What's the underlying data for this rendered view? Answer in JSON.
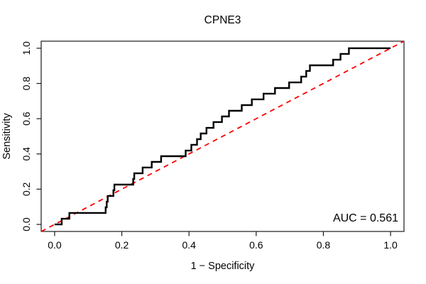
{
  "chart_data": {
    "type": "line",
    "subtype": "roc-step-curve",
    "title": "CPNE3",
    "xlabel": "1 − Specificity",
    "ylabel": "Sensitivity",
    "annotation": "AUC = 0.561",
    "auc": 0.561,
    "xlim": [
      -0.04,
      1.04
    ],
    "ylim": [
      -0.04,
      1.04
    ],
    "grid": false,
    "legend": "none",
    "x_ticks": [
      0.0,
      0.2,
      0.4,
      0.6,
      0.8,
      1.0
    ],
    "y_ticks": [
      0.0,
      0.2,
      0.4,
      0.6,
      0.8,
      1.0
    ],
    "x_tick_labels": [
      "0.0",
      "0.2",
      "0.4",
      "0.6",
      "0.8",
      "1.0"
    ],
    "y_tick_labels": [
      "0.0",
      "0.2",
      "0.4",
      "0.6",
      "0.8",
      "1.0"
    ],
    "series": [
      {
        "name": "ROC curve",
        "style": "step",
        "color": "#000000",
        "line_width": 2.4,
        "points": [
          [
            0.0,
            0.0
          ],
          [
            0.021,
            0.032
          ],
          [
            0.044,
            0.065
          ],
          [
            0.152,
            0.097
          ],
          [
            0.155,
            0.129
          ],
          [
            0.158,
            0.161
          ],
          [
            0.175,
            0.194
          ],
          [
            0.178,
            0.226
          ],
          [
            0.234,
            0.258
          ],
          [
            0.237,
            0.29
          ],
          [
            0.262,
            0.323
          ],
          [
            0.289,
            0.355
          ],
          [
            0.317,
            0.387
          ],
          [
            0.39,
            0.419
          ],
          [
            0.407,
            0.452
          ],
          [
            0.424,
            0.484
          ],
          [
            0.435,
            0.516
          ],
          [
            0.452,
            0.548
          ],
          [
            0.473,
            0.581
          ],
          [
            0.498,
            0.613
          ],
          [
            0.519,
            0.645
          ],
          [
            0.557,
            0.677
          ],
          [
            0.587,
            0.71
          ],
          [
            0.622,
            0.742
          ],
          [
            0.656,
            0.774
          ],
          [
            0.698,
            0.806
          ],
          [
            0.734,
            0.839
          ],
          [
            0.749,
            0.871
          ],
          [
            0.76,
            0.903
          ],
          [
            0.829,
            0.935
          ],
          [
            0.851,
            0.968
          ],
          [
            0.876,
            1.0
          ],
          [
            1.0,
            1.0
          ]
        ]
      },
      {
        "name": "chance reference diagonal",
        "style": "dashed",
        "color": "#ff0000",
        "line_width": 1.8,
        "dash": "7 6",
        "points": [
          [
            -0.04,
            -0.04
          ],
          [
            1.04,
            1.04
          ]
        ]
      }
    ]
  },
  "colors": {
    "curve": "#000000",
    "diagonal": "#ff0000",
    "box": "#1a1a1a",
    "background": "#ffffff",
    "text": "#000000"
  }
}
